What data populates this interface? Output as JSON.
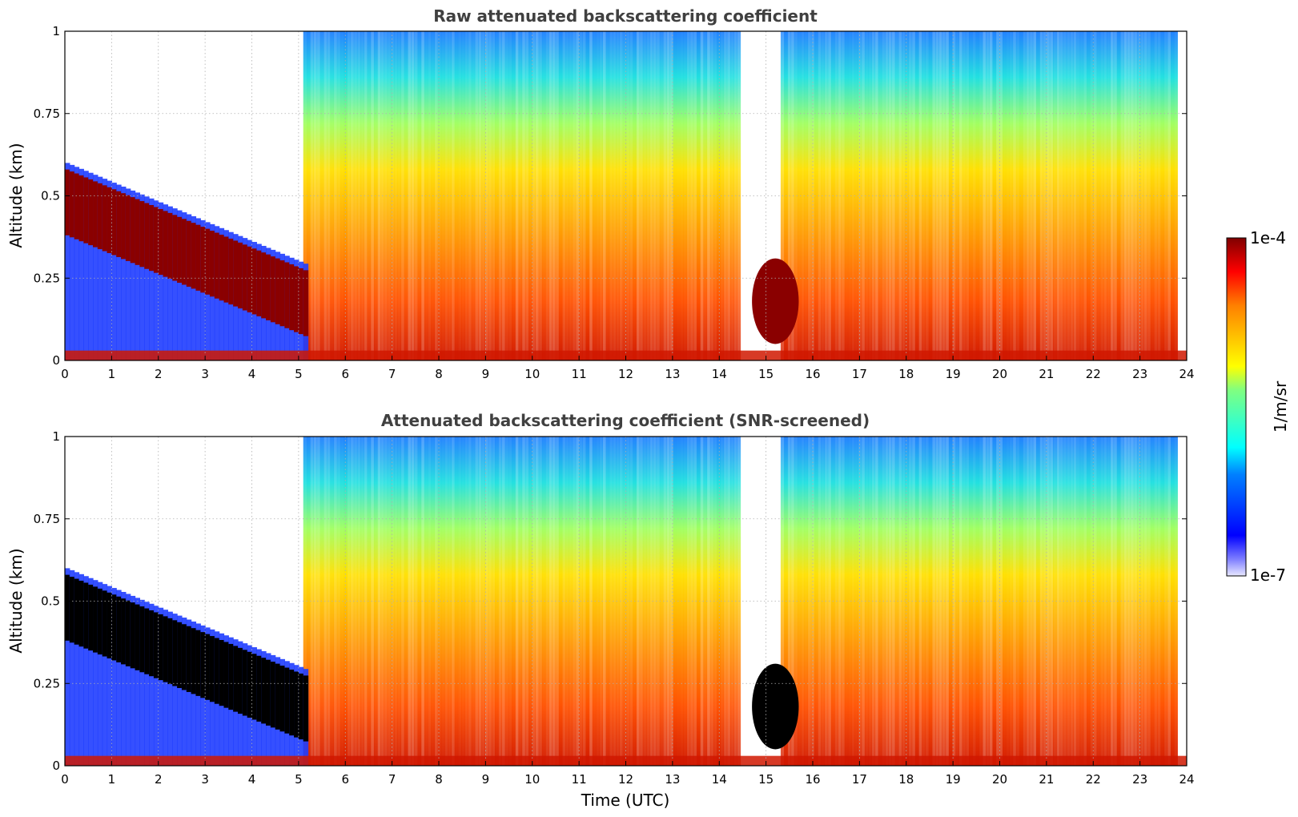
{
  "chart_data": [
    {
      "type": "heatmap",
      "title": "Raw attenuated backscattering coefficient",
      "xlabel": "",
      "ylabel": "Altitude (km)",
      "xlim": [
        0,
        24
      ],
      "ylim": [
        0,
        1
      ],
      "xticks": [
        "0",
        "1",
        "2",
        "3",
        "4",
        "5",
        "6",
        "7",
        "8",
        "9",
        "10",
        "11",
        "12",
        "13",
        "14",
        "15",
        "16",
        "17",
        "18",
        "19",
        "20",
        "21",
        "22",
        "23",
        "24"
      ],
      "yticks": [
        "0",
        "0.25",
        "0.5",
        "0.75",
        "1"
      ],
      "grid": true,
      "screened": false
    },
    {
      "type": "heatmap",
      "title": "Attenuated backscattering coefficient (SNR-screened)",
      "xlabel": "Time (UTC)",
      "ylabel": "Altitude (km)",
      "xlim": [
        0,
        24
      ],
      "ylim": [
        0,
        1
      ],
      "xticks": [
        "0",
        "1",
        "2",
        "3",
        "4",
        "5",
        "6",
        "7",
        "8",
        "9",
        "10",
        "11",
        "12",
        "13",
        "14",
        "15",
        "16",
        "17",
        "18",
        "19",
        "20",
        "21",
        "22",
        "23",
        "24"
      ],
      "yticks": [
        "0",
        "0.25",
        "0.5",
        "0.75",
        "1"
      ],
      "grid": true,
      "screened": true
    }
  ],
  "colorbar": {
    "label": "1/m/sr",
    "max_label": "1e-4",
    "min_label": "1e-7",
    "range": [
      1e-07,
      0.0001
    ],
    "scale": "log",
    "colormap": "jet"
  },
  "colors": {
    "title": "#404040",
    "screened_fill": "#000000",
    "grid": "#b0b0b0"
  }
}
